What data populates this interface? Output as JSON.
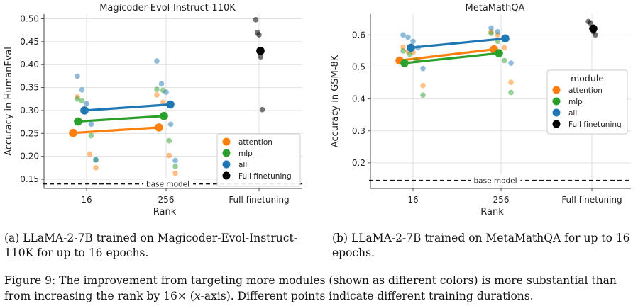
{
  "colors": {
    "attention": "#ff7f0e",
    "mlp": "#2ca02c",
    "all": "#1f77b4",
    "full": "#000000"
  },
  "chart_data": [
    {
      "type": "scatter",
      "title": "Magicoder-Evol-Instruct-110K",
      "xlabel": "Rank",
      "ylabel": "Accuracy in HumanEval",
      "categories": [
        "16",
        "256",
        "Full finetuning"
      ],
      "yticks": [
        "0.15",
        "0.20",
        "0.25",
        "0.30",
        "0.35",
        "0.40",
        "0.45",
        "0.50"
      ],
      "ylim": [
        0.13,
        0.51
      ],
      "legend_position": "bottom-right",
      "base_model": {
        "label": "base model",
        "value": 0.14
      },
      "series": [
        {
          "name": "attention",
          "color_key": "attention",
          "means": [
            0.251,
            0.263
          ],
          "points": [
            [
              0,
              0.33
            ],
            [
              0,
              0.302
            ],
            [
              0,
              0.205
            ],
            [
              0,
              0.175
            ],
            [
              1,
              0.334
            ],
            [
              1,
              0.318
            ],
            [
              1,
              0.202
            ],
            [
              1,
              0.163
            ]
          ]
        },
        {
          "name": "mlp",
          "color_key": "mlp",
          "means": [
            0.276,
            0.288
          ],
          "points": [
            [
              0,
              0.325
            ],
            [
              0,
              0.321
            ],
            [
              0,
              0.301
            ],
            [
              0,
              0.245
            ],
            [
              0,
              0.192
            ],
            [
              1,
              0.346
            ],
            [
              1,
              0.344
            ],
            [
              1,
              0.234
            ],
            [
              1,
              0.178
            ]
          ]
        },
        {
          "name": "all",
          "color_key": "all",
          "means": [
            0.3,
            0.313
          ],
          "points": [
            [
              0,
              0.375
            ],
            [
              0,
              0.345
            ],
            [
              0,
              0.315
            ],
            [
              0,
              0.27
            ],
            [
              0,
              0.193
            ],
            [
              1,
              0.408
            ],
            [
              1,
              0.358
            ],
            [
              1,
              0.34
            ],
            [
              1,
              0.27
            ],
            [
              1,
              0.191
            ]
          ]
        },
        {
          "name": "Full finetuning",
          "color_key": "full",
          "mean": 0.43,
          "points": [
            [
              2,
              0.498
            ],
            [
              2,
              0.47
            ],
            [
              2,
              0.465
            ],
            [
              2,
              0.417
            ],
            [
              2,
              0.302
            ]
          ]
        }
      ]
    },
    {
      "type": "scatter",
      "title": "MetaMathQA",
      "xlabel": "Rank",
      "ylabel": "Accuracy in GSM-8K",
      "categories": [
        "16",
        "256",
        "Full finetuning"
      ],
      "yticks": [
        "0.2",
        "0.3",
        "0.4",
        "0.5",
        "0.6"
      ],
      "ylim": [
        0.12,
        0.665
      ],
      "legend_position": "right",
      "legend_title": "module",
      "base_model": {
        "label": "base model",
        "value": 0.145
      },
      "series": [
        {
          "name": "attention",
          "color_key": "attention",
          "means": [
            0.52,
            0.555
          ],
          "points": [
            [
              0,
              0.562
            ],
            [
              0,
              0.548
            ],
            [
              0,
              0.545
            ],
            [
              0,
              0.52
            ],
            [
              0,
              0.442
            ],
            [
              1,
              0.61
            ],
            [
              1,
              0.6
            ],
            [
              1,
              0.56
            ],
            [
              1,
              0.452
            ]
          ]
        },
        {
          "name": "mlp",
          "color_key": "mlp",
          "means": [
            0.512,
            0.543
          ],
          "points": [
            [
              0,
              0.55
            ],
            [
              0,
              0.54
            ],
            [
              0,
              0.52
            ],
            [
              0,
              0.412
            ],
            [
              1,
              0.605
            ],
            [
              1,
              0.58
            ],
            [
              1,
              0.52
            ],
            [
              1,
              0.42
            ]
          ]
        },
        {
          "name": "all",
          "color_key": "all",
          "means": [
            0.56,
            0.589
          ],
          "points": [
            [
              0,
              0.6
            ],
            [
              0,
              0.593
            ],
            [
              0,
              0.58
            ],
            [
              0,
              0.56
            ],
            [
              0,
              0.495
            ],
            [
              1,
              0.622
            ],
            [
              1,
              0.61
            ],
            [
              1,
              0.592
            ],
            [
              1,
              0.512
            ]
          ]
        },
        {
          "name": "Full finetuning",
          "color_key": "full",
          "mean": 0.62,
          "points": [
            [
              2,
              0.642
            ],
            [
              2,
              0.638
            ],
            [
              2,
              0.62
            ],
            [
              2,
              0.61
            ],
            [
              2,
              0.6
            ]
          ]
        }
      ]
    }
  ],
  "subcaptions": {
    "a": "(a) LLaMA-2-7B trained on Magicoder-Evol-Instruct-110K for up to 16 epochs.",
    "b": "(b) LLaMA-2-7B trained on MetaMathQA for up to 16 epochs."
  },
  "figure_caption": {
    "label": "Figure 9:",
    "text_before": " The improvement from targeting more modules (shown as different colors) is more substantial than from increasing the rank by 16× (",
    "axis_word": "x",
    "text_after": "-axis). Different points indicate different training durations."
  }
}
